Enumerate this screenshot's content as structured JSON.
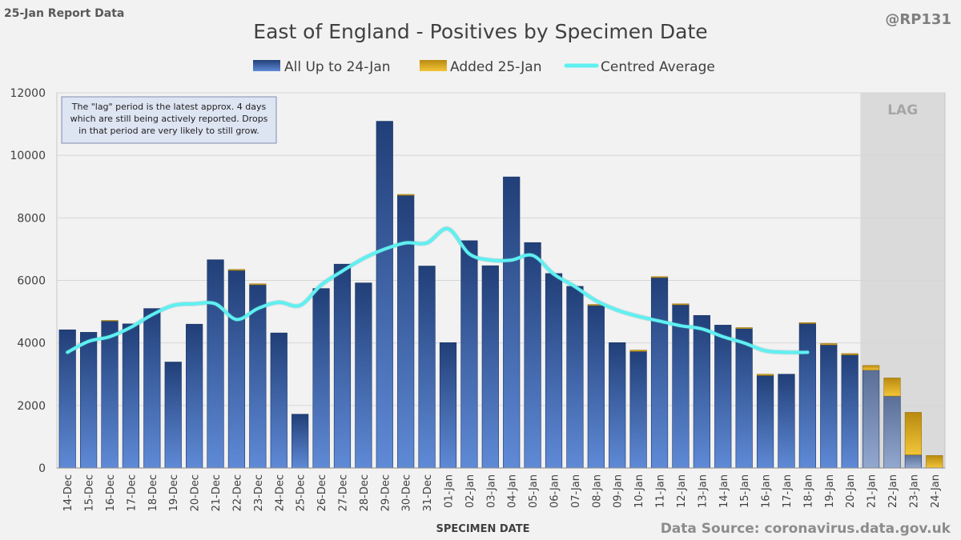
{
  "header": {
    "report_label": "25-Jan Report Data",
    "handle": "@RP131"
  },
  "footer": {
    "source": "Data Source: coronavirus.data.gov.uk"
  },
  "colors": {
    "background": "#f2f2f2",
    "bar_blue_top": "#213f78",
    "bar_blue_bottom": "#5f8ad6",
    "bar_gold": "#e3ad1a",
    "average_line": "#5ff0f2",
    "lag_shade": "#dadada",
    "grid": "#d6d6d6"
  },
  "chart_data": {
    "type": "bar",
    "title": "East of England - Positives by Specimen Date",
    "xlabel": "SPECIMEN DATE",
    "ylabel": "",
    "ylim": [
      0,
      12000
    ],
    "yticks": [
      0,
      2000,
      4000,
      6000,
      8000,
      10000,
      12000
    ],
    "grid": true,
    "legend_position": "top-center",
    "stacked": true,
    "categories": [
      "14-Dec",
      "15-Dec",
      "16-Dec",
      "17-Dec",
      "18-Dec",
      "19-Dec",
      "20-Dec",
      "21-Dec",
      "22-Dec",
      "23-Dec",
      "24-Dec",
      "25-Dec",
      "26-Dec",
      "27-Dec",
      "28-Dec",
      "29-Dec",
      "30-Dec",
      "31-Dec",
      "01-Jan",
      "02-Jan",
      "03-Jan",
      "04-Jan",
      "05-Jan",
      "06-Jan",
      "07-Jan",
      "08-Jan",
      "09-Jan",
      "10-Jan",
      "11-Jan",
      "12-Jan",
      "13-Jan",
      "14-Jan",
      "15-Jan",
      "16-Jan",
      "17-Jan",
      "18-Jan",
      "19-Jan",
      "20-Jan",
      "21-Jan",
      "22-Jan",
      "23-Jan",
      "24-Jan"
    ],
    "series": [
      {
        "name": "All Up to 24-Jan",
        "kind": "bar",
        "values": [
          4420,
          4340,
          4700,
          4610,
          5100,
          3390,
          4600,
          6660,
          6320,
          5860,
          4320,
          1720,
          5740,
          6520,
          5920,
          11090,
          8720,
          6460,
          4010,
          7270,
          6470,
          9310,
          7210,
          6220,
          5810,
          5200,
          4010,
          3730,
          6090,
          5220,
          4880,
          4570,
          4460,
          2960,
          3000,
          4620,
          3940,
          3620,
          3130,
          2300,
          420,
          0
        ]
      },
      {
        "name": "Added 25-Jan",
        "kind": "bar",
        "values": [
          0,
          0,
          20,
          0,
          0,
          0,
          0,
          0,
          30,
          30,
          0,
          0,
          0,
          0,
          0,
          0,
          30,
          0,
          0,
          0,
          0,
          0,
          0,
          0,
          0,
          30,
          0,
          40,
          30,
          30,
          0,
          0,
          30,
          40,
          0,
          30,
          40,
          40,
          150,
          580,
          1360,
          400
        ]
      },
      {
        "name": "Centred Average",
        "kind": "line",
        "values": [
          3700,
          4050,
          4200,
          4500,
          4900,
          5200,
          5250,
          5250,
          4750,
          5100,
          5300,
          5200,
          5850,
          6300,
          6700,
          7000,
          7200,
          7200,
          7650,
          6850,
          6650,
          6650,
          6800,
          6200,
          5800,
          5350,
          5050,
          4850,
          4700,
          4550,
          4450,
          4200,
          4000,
          3750,
          3700,
          3700,
          null,
          null,
          null,
          null,
          null,
          null
        ]
      }
    ],
    "annotations": {
      "lag_label": "LAG",
      "lag_from_category": "21-Jan",
      "note": "The \"lag\" period is the latest approx. 4 days which are still being actively reported.  Drops in that period are very likely to still grow."
    }
  }
}
